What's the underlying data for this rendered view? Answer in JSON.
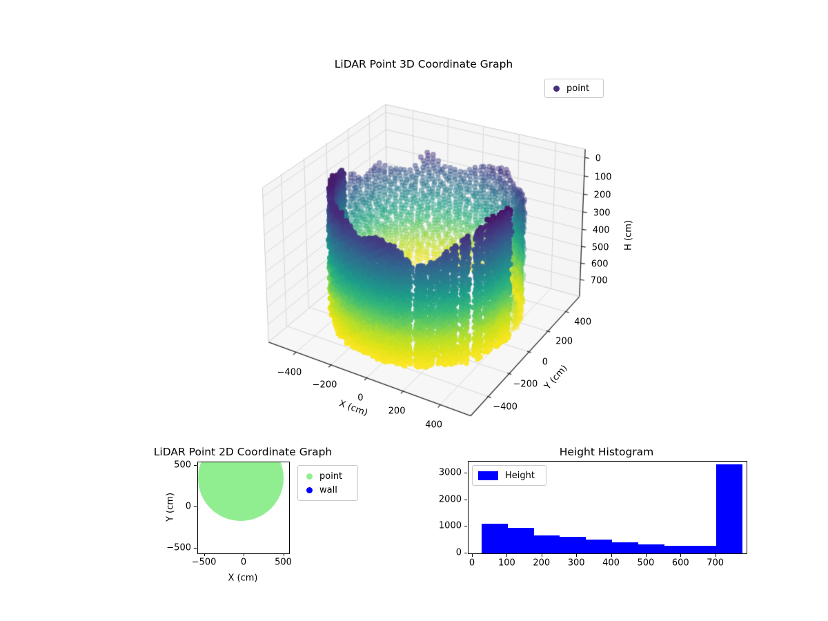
{
  "chart_data": [
    {
      "id": "plot3d",
      "type": "scatter",
      "projection": "3d",
      "title": "LiDAR Point 3D Coordinate Graph",
      "xlabel": "X (cm)",
      "ylabel": "Y (cm)",
      "zlabel": "H (cm)",
      "xticks": [
        -400,
        -200,
        0,
        200,
        400
      ],
      "yticks": [
        -400,
        -200,
        0,
        200,
        400
      ],
      "zticks": [
        0,
        100,
        200,
        300,
        400,
        500,
        600,
        700
      ],
      "xlim": [
        -560,
        560
      ],
      "ylim": [
        -560,
        560
      ],
      "zlim": [
        0,
        770
      ],
      "zaxis_inverted": true,
      "legend": [
        {
          "label": "point",
          "color": "#46307e"
        }
      ],
      "legend_position": "upper right",
      "grid": true,
      "series": [
        {
          "name": "point",
          "shape": "cylindrical wall of LiDAR returns",
          "center_xy": [
            0,
            0
          ],
          "radius_cm": 460,
          "height_range_cm": [
            25,
            770
          ],
          "colormap": "viridis",
          "color_by": "H",
          "note_rendering": "front wall dense (top dark purple H~30, bottom yellow H~760), rear wall sparse translucent columns, vertical white gaps on right-of-center"
        }
      ]
    },
    {
      "id": "plot2d",
      "type": "scatter",
      "title": "LiDAR Point 2D Coordinate Graph",
      "xlabel": "X (cm)",
      "ylabel": "Y (cm)",
      "xticks": [
        -500,
        0,
        500
      ],
      "yticks": [
        -500,
        0,
        500
      ],
      "xlim": [
        -583,
        565
      ],
      "ylim": [
        -558,
        542
      ],
      "grid": false,
      "legend": [
        {
          "label": "point",
          "color": "#90ee90"
        },
        {
          "label": "wall",
          "color": "#0000ff"
        }
      ],
      "legend_position": "outside upper right",
      "series": [
        {
          "name": "point",
          "color": "#90ee90",
          "shape": "filled disk of points, clipped at top of axes",
          "center": [
            -45,
            350
          ],
          "radius": 530
        }
      ]
    },
    {
      "id": "histogram",
      "type": "histogram",
      "title": "Height Histogram",
      "legend": [
        {
          "label": "Height",
          "color": "#0000ff"
        }
      ],
      "legend_position": "upper left",
      "bar_color": "#0000ff",
      "bin_edges": [
        25,
        100,
        175,
        250,
        325,
        400,
        475,
        550,
        625,
        700,
        775
      ],
      "counts": [
        1120,
        960,
        680,
        610,
        510,
        420,
        340,
        280,
        280,
        3325
      ],
      "xticks": [
        0,
        100,
        200,
        300,
        400,
        500,
        600,
        700
      ],
      "yticks": [
        0,
        1000,
        2000,
        3000
      ],
      "xlim": [
        -12,
        788
      ],
      "ylim": [
        0,
        3440
      ]
    }
  ],
  "colors": {
    "pane": "#f5f5f5",
    "grid3d": "#d8d8d8",
    "pane_edge": "#cccccc",
    "spine": "#2a2a2a",
    "viridis_stops": [
      "#440154",
      "#482878",
      "#3e4989",
      "#31688e",
      "#26828e",
      "#1f9e89",
      "#35b779",
      "#6ece58",
      "#b5de2b",
      "#dfe318",
      "#fde725"
    ]
  }
}
